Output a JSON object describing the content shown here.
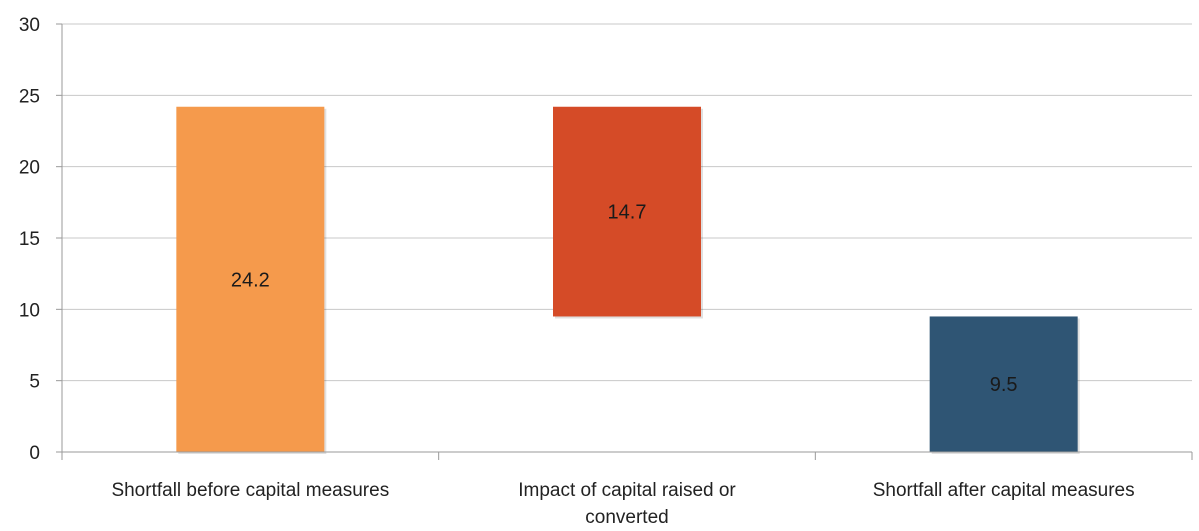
{
  "chart_data": {
    "type": "bar",
    "subtype": "waterfall",
    "categories": [
      [
        "Shortfall before capital measures"
      ],
      [
        "Impact of capital raised or",
        "converted"
      ],
      [
        "Shortfall after capital measures"
      ]
    ],
    "bars": [
      {
        "value": 24.2,
        "base": 0,
        "top": 24.2,
        "label": "24.2",
        "color": "#f59a4c"
      },
      {
        "value": 14.7,
        "base": 9.5,
        "top": 24.2,
        "label": "14.7",
        "color": "#d54b27"
      },
      {
        "value": 9.5,
        "base": 0,
        "top": 9.5,
        "label": "9.5",
        "color": "#2f5574"
      }
    ],
    "ylim": [
      0,
      30
    ],
    "yticks": [
      0,
      5,
      10,
      15,
      20,
      25,
      30
    ],
    "grid": true,
    "legend": "none"
  }
}
